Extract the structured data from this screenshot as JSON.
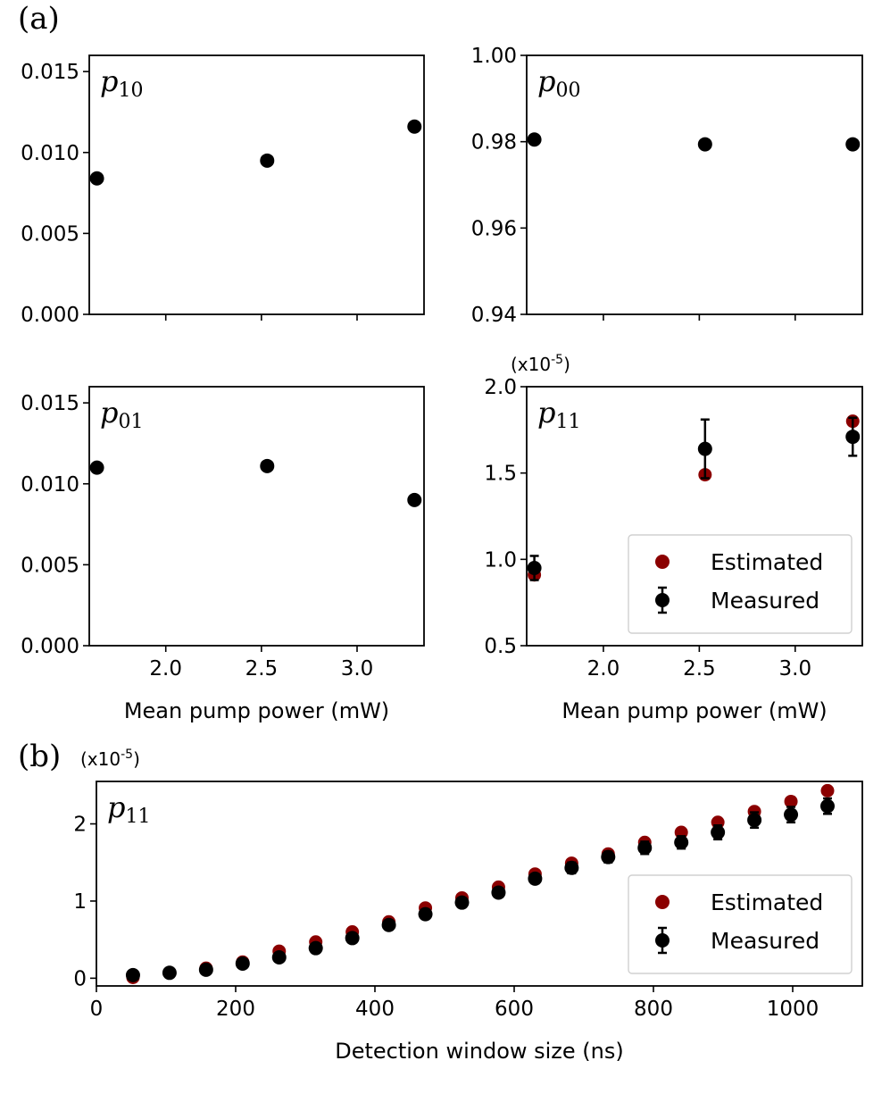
{
  "panel_labels": {
    "a": "(a)",
    "b": "(b)"
  },
  "colors": {
    "estimated": "#8b0000",
    "measured": "#000000"
  },
  "chart_data": [
    {
      "type": "scatter",
      "panel": "(a)",
      "label_main": "p",
      "label_sub": "10",
      "x": [
        1.64,
        2.53,
        3.3
      ],
      "series": [
        {
          "name": "",
          "values": [
            0.0084,
            0.0095,
            0.0116
          ]
        }
      ],
      "ylim": [
        0.0,
        0.016
      ],
      "yticks": [
        0.0,
        0.005,
        0.01,
        0.015
      ],
      "ytick_labels": [
        "0.000",
        "0.005",
        "0.010",
        "0.015"
      ],
      "xlim": [
        1.6,
        3.35
      ],
      "xticks": [
        2.0,
        2.5,
        3.0
      ],
      "xtick_labels": [],
      "xlabel": "",
      "multiplier": "",
      "grid": false
    },
    {
      "type": "scatter",
      "panel": "(a)",
      "label_main": "p",
      "label_sub": "00",
      "x": [
        1.64,
        2.53,
        3.3
      ],
      "series": [
        {
          "name": "",
          "values": [
            0.9805,
            0.9794,
            0.9794
          ]
        }
      ],
      "ylim": [
        0.94,
        1.0
      ],
      "yticks": [
        0.94,
        0.96,
        0.98,
        1.0
      ],
      "ytick_labels": [
        "0.94",
        "0.96",
        "0.98",
        "1.00"
      ],
      "xlim": [
        1.6,
        3.35
      ],
      "xticks": [
        2.0,
        2.5,
        3.0
      ],
      "xtick_labels": [],
      "xlabel": "",
      "multiplier": "",
      "grid": false
    },
    {
      "type": "scatter",
      "panel": "(a)",
      "label_main": "p",
      "label_sub": "01",
      "x": [
        1.64,
        2.53,
        3.3
      ],
      "series": [
        {
          "name": "",
          "values": [
            0.011,
            0.0111,
            0.009
          ]
        }
      ],
      "ylim": [
        0.0,
        0.016
      ],
      "yticks": [
        0.0,
        0.005,
        0.01,
        0.015
      ],
      "ytick_labels": [
        "0.000",
        "0.005",
        "0.010",
        "0.015"
      ],
      "xlim": [
        1.6,
        3.35
      ],
      "xticks": [
        2.0,
        2.5,
        3.0
      ],
      "xtick_labels": [
        "2.0",
        "2.5",
        "3.0"
      ],
      "xlabel": "Mean pump power (mW)",
      "multiplier": "",
      "grid": false
    },
    {
      "type": "scatter",
      "panel": "(a)",
      "label_main": "p",
      "label_sub": "11",
      "x": [
        1.64,
        2.53,
        3.3
      ],
      "series": [
        {
          "name": "Estimated",
          "values": [
            0.91,
            1.49,
            1.8
          ]
        },
        {
          "name": "Measured",
          "values": [
            0.95,
            1.64,
            1.71
          ],
          "errors": [
            0.07,
            0.17,
            0.11
          ]
        }
      ],
      "ylim": [
        0.5,
        2.0
      ],
      "yticks": [
        0.5,
        1.0,
        1.5,
        2.0
      ],
      "ytick_labels": [
        "0.5",
        "1.0",
        "1.5",
        "2.0"
      ],
      "xlim": [
        1.6,
        3.35
      ],
      "xticks": [
        2.0,
        2.5,
        3.0
      ],
      "xtick_labels": [
        "2.0",
        "2.5",
        "3.0"
      ],
      "xlabel": "Mean pump power (mW)",
      "multiplier": "(x10-5)",
      "legend": "lower-right",
      "grid": false
    },
    {
      "type": "scatter",
      "panel": "(b)",
      "label_main": "p",
      "label_sub": "11",
      "x": [
        52.5,
        105,
        157.5,
        210,
        262.5,
        315,
        367.5,
        420,
        472.5,
        525,
        577.5,
        630,
        682.5,
        735,
        787.5,
        840,
        892.5,
        945,
        997.5,
        1050
      ],
      "series": [
        {
          "name": "Estimated",
          "values": [
            0.01,
            0.07,
            0.13,
            0.21,
            0.35,
            0.47,
            0.6,
            0.73,
            0.91,
            1.04,
            1.18,
            1.35,
            1.49,
            1.61,
            1.76,
            1.89,
            2.02,
            2.16,
            2.29,
            2.43
          ]
        },
        {
          "name": "Measured",
          "values": [
            0.04,
            0.07,
            0.11,
            0.19,
            0.27,
            0.39,
            0.52,
            0.69,
            0.83,
            0.98,
            1.11,
            1.29,
            1.43,
            1.57,
            1.69,
            1.76,
            1.89,
            2.05,
            2.12,
            2.23
          ],
          "errors": [
            0.03,
            0.03,
            0.04,
            0.04,
            0.05,
            0.05,
            0.05,
            0.06,
            0.06,
            0.06,
            0.06,
            0.06,
            0.07,
            0.07,
            0.08,
            0.08,
            0.09,
            0.1,
            0.1,
            0.1
          ]
        }
      ],
      "ylim": [
        -0.1,
        2.55
      ],
      "yticks": [
        0,
        1,
        2
      ],
      "ytick_labels": [
        "0",
        "1",
        "2"
      ],
      "xlim": [
        0,
        1100
      ],
      "xticks": [
        0,
        200,
        400,
        600,
        800,
        1000
      ],
      "xtick_labels": [
        "0",
        "200",
        "400",
        "600",
        "800",
        "1000"
      ],
      "xlabel": "Detection window size (ns)",
      "multiplier": "(x10-5)",
      "legend": "lower-right",
      "grid": false
    }
  ]
}
